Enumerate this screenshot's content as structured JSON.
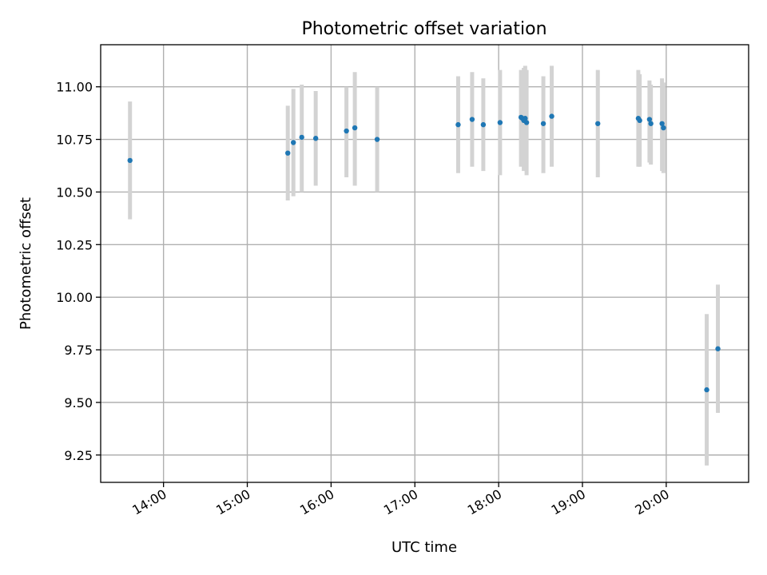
{
  "chart_data": {
    "type": "scatter",
    "title": "Photometric offset variation",
    "xlabel": "UTC time",
    "ylabel": "Photometric offset",
    "x_axis_type": "time",
    "xlim": [
      "13:15",
      "20:59"
    ],
    "ylim": [
      9.12,
      11.2
    ],
    "x_ticks": [
      "14:00",
      "15:00",
      "16:00",
      "17:00",
      "18:00",
      "19:00",
      "20:00"
    ],
    "y_ticks": [
      9.25,
      9.5,
      9.75,
      10.0,
      10.25,
      10.5,
      10.75,
      11.0
    ],
    "y_tick_labels": [
      "9.25",
      "9.50",
      "9.75",
      "10.00",
      "10.25",
      "10.50",
      "10.75",
      "11.00"
    ],
    "grid": true,
    "legend": false,
    "point_color": "#1f77b4",
    "errorbar_color": "#d3d3d3",
    "points": [
      {
        "time": "13:36",
        "value": 10.65,
        "low": 10.37,
        "high": 10.93
      },
      {
        "time": "15:29",
        "value": 10.685,
        "low": 10.46,
        "high": 10.91
      },
      {
        "time": "15:33",
        "value": 10.735,
        "low": 10.48,
        "high": 10.99
      },
      {
        "time": "15:39",
        "value": 10.76,
        "low": 10.5,
        "high": 11.01
      },
      {
        "time": "15:49",
        "value": 10.755,
        "low": 10.53,
        "high": 10.98
      },
      {
        "time": "16:11",
        "value": 10.79,
        "low": 10.57,
        "high": 11.0
      },
      {
        "time": "16:17",
        "value": 10.805,
        "low": 10.53,
        "high": 11.07
      },
      {
        "time": "16:33",
        "value": 10.75,
        "low": 10.5,
        "high": 11.0
      },
      {
        "time": "17:31",
        "value": 10.82,
        "low": 10.59,
        "high": 11.05
      },
      {
        "time": "17:41",
        "value": 10.845,
        "low": 10.62,
        "high": 11.07
      },
      {
        "time": "17:49",
        "value": 10.82,
        "low": 10.6,
        "high": 11.04
      },
      {
        "time": "18:01",
        "value": 10.83,
        "low": 10.58,
        "high": 11.08
      },
      {
        "time": "18:16",
        "value": 10.855,
        "low": 10.62,
        "high": 11.08
      },
      {
        "time": "18:17",
        "value": 10.85,
        "low": 10.63,
        "high": 11.07
      },
      {
        "time": "18:18",
        "value": 10.84,
        "low": 10.6,
        "high": 11.09
      },
      {
        "time": "18:19",
        "value": 10.85,
        "low": 10.61,
        "high": 11.1
      },
      {
        "time": "18:20",
        "value": 10.83,
        "low": 10.58,
        "high": 11.08
      },
      {
        "time": "18:32",
        "value": 10.825,
        "low": 10.59,
        "high": 11.05
      },
      {
        "time": "18:38",
        "value": 10.86,
        "low": 10.62,
        "high": 11.1
      },
      {
        "time": "19:11",
        "value": 10.825,
        "low": 10.57,
        "high": 11.08
      },
      {
        "time": "19:40",
        "value": 10.85,
        "low": 10.62,
        "high": 11.08
      },
      {
        "time": "19:41",
        "value": 10.84,
        "low": 10.62,
        "high": 11.06
      },
      {
        "time": "19:48",
        "value": 10.845,
        "low": 10.64,
        "high": 11.03
      },
      {
        "time": "19:49",
        "value": 10.825,
        "low": 10.63,
        "high": 11.01
      },
      {
        "time": "19:57",
        "value": 10.825,
        "low": 10.6,
        "high": 11.04
      },
      {
        "time": "19:58",
        "value": 10.805,
        "low": 10.59,
        "high": 11.02
      },
      {
        "time": "20:29",
        "value": 9.56,
        "low": 9.2,
        "high": 9.92
      },
      {
        "time": "20:37",
        "value": 9.755,
        "low": 9.45,
        "high": 10.06
      }
    ]
  }
}
